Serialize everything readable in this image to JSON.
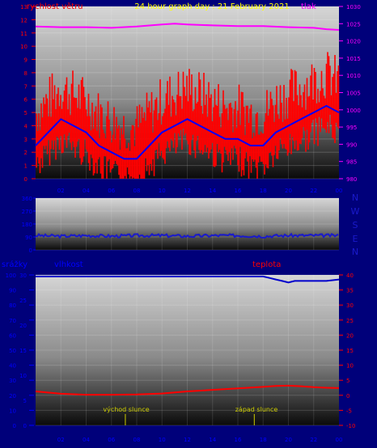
{
  "colors": {
    "background": "#00007a",
    "wind": "#ff0000",
    "wind_gust_base": "#0000ff",
    "pressure": "#ff00ff",
    "title": "#ffff00",
    "humidity": "#0000cc",
    "temperature": "#ff0000",
    "sun_marker": "#cccc00",
    "direction": "#1a1acc"
  },
  "header": {
    "wind_label": "rychlost větru",
    "title": "24 hour graph day : 21 February 2021",
    "pressure_label": "tlak"
  },
  "direction": {
    "labels": [
      "N",
      "W",
      "S",
      "E",
      "N"
    ]
  },
  "lower": {
    "rain_label": "srážky",
    "humidity_label": "vlhkost",
    "temperature_label": "teplota",
    "sunrise_label": "východ slunce",
    "sunset_label": "západ slunce"
  },
  "chart_data": [
    {
      "type": "line",
      "id": "wind_pressure",
      "title": "24 hour graph day : 21 February 2021",
      "x_ticks": [
        "02",
        "04",
        "06",
        "08",
        "10",
        "12",
        "14",
        "16",
        "18",
        "20",
        "22",
        "00"
      ],
      "x_range_hours": [
        0,
        24
      ],
      "y_left_label": "rychlost větru",
      "y_left_range": [
        0,
        13
      ],
      "y_left_ticks": [
        0,
        1,
        2,
        3,
        4,
        5,
        6,
        7,
        8,
        9,
        10,
        11,
        12,
        13
      ],
      "y_right_label": "tlak",
      "y_right_range": [
        980,
        1030
      ],
      "y_right_ticks": [
        980,
        985,
        990,
        995,
        1000,
        1005,
        1010,
        1015,
        1020,
        1025,
        1030
      ],
      "series": [
        {
          "name": "rychlost větru",
          "axis": "left",
          "x": [
            0,
            1,
            2,
            3,
            4,
            5,
            6,
            7,
            8,
            9,
            10,
            11,
            12,
            13,
            14,
            15,
            16,
            17,
            18,
            19,
            20,
            21,
            22,
            23,
            24
          ],
          "y": [
            2.5,
            3.5,
            4.5,
            4.0,
            3.5,
            2.5,
            2.0,
            1.5,
            1.5,
            2.5,
            3.5,
            4.0,
            4.5,
            4.0,
            3.5,
            3.0,
            3.0,
            2.5,
            2.5,
            3.5,
            4.0,
            4.5,
            5.0,
            5.5,
            5.0
          ]
        },
        {
          "name": "tlak",
          "axis": "right",
          "x": [
            0,
            2,
            4,
            6,
            8,
            10,
            11,
            12,
            14,
            16,
            18,
            20,
            22,
            23,
            24
          ],
          "y": [
            1024.2,
            1024.0,
            1024.0,
            1023.8,
            1024.2,
            1024.8,
            1025.0,
            1024.8,
            1024.5,
            1024.3,
            1024.3,
            1024.0,
            1023.8,
            1023.4,
            1023.2
          ]
        }
      ]
    },
    {
      "type": "line",
      "id": "wind_direction",
      "x_range_hours": [
        0,
        24
      ],
      "y_range": [
        0,
        360
      ],
      "y_ticks": [
        0,
        90,
        180,
        270,
        360
      ],
      "series": [
        {
          "x": [
            0,
            2,
            4,
            6,
            8,
            10,
            12,
            14,
            16,
            18,
            20,
            22,
            24
          ],
          "y": [
            100,
            95,
            100,
            95,
            100,
            100,
            95,
            100,
            100,
            95,
            100,
            100,
            100
          ]
        }
      ]
    },
    {
      "type": "line",
      "id": "humidity_temperature",
      "x_ticks": [
        "02",
        "04",
        "06",
        "08",
        "10",
        "12",
        "14",
        "16",
        "18",
        "20",
        "22",
        "00"
      ],
      "x_range_hours": [
        0,
        24
      ],
      "y_rain_label": "srážky",
      "y_rain_ticks": [
        0,
        5,
        10,
        15,
        20,
        25,
        30
      ],
      "y_humidity_label": "vlhkost",
      "y_humidity_range": [
        0,
        100
      ],
      "y_humidity_ticks": [
        0,
        10,
        20,
        30,
        40,
        50,
        60,
        70,
        80,
        90,
        100
      ],
      "y_temperature_label": "teplota",
      "y_temperature_range": [
        -10,
        40
      ],
      "y_temperature_ticks": [
        -10,
        -5,
        0,
        5,
        10,
        15,
        20,
        25,
        30,
        35,
        40
      ],
      "series": [
        {
          "name": "vlhkost",
          "axis": "humidity",
          "x": [
            0,
            16,
            17,
            18,
            18.5,
            19,
            19.5,
            20,
            20.5,
            21,
            22,
            23,
            24
          ],
          "y": [
            99,
            99,
            99,
            99,
            98,
            97,
            96,
            95,
            96,
            96,
            96,
            96,
            97
          ]
        },
        {
          "name": "teplota",
          "axis": "temperature",
          "x": [
            0,
            2,
            4,
            6,
            8,
            10,
            12,
            14,
            16,
            18,
            19,
            20,
            21,
            22,
            23,
            24
          ],
          "y": [
            1.3,
            0.5,
            0.2,
            0.2,
            0.3,
            0.6,
            1.3,
            1.8,
            2.3,
            2.8,
            3.1,
            3.2,
            3.0,
            2.7,
            2.5,
            2.4
          ]
        }
      ],
      "annotations": [
        {
          "text": "východ slunce",
          "x": 7.1
        },
        {
          "text": "západ slunce",
          "x": 17.3
        }
      ]
    }
  ]
}
